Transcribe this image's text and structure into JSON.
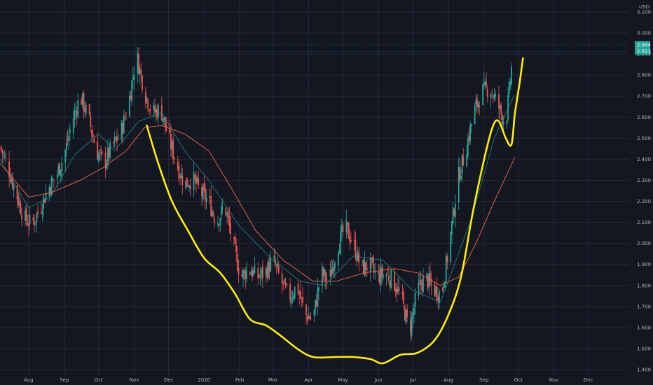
{
  "chart_data": {
    "type": "candlestick",
    "y_unit": "USD",
    "ylim": [
      1.38,
      3.12
    ],
    "y_ticks": [
      "3.100",
      "3.000",
      "2.900",
      "2.800",
      "2.700",
      "2.600",
      "2.500",
      "2.400",
      "2.300",
      "2.200",
      "2.100",
      "2.000",
      "1.900",
      "1.800",
      "1.700",
      "1.600",
      "1.500",
      "1.400"
    ],
    "x_ticks": [
      "Aug",
      "Sep",
      "Oct",
      "Nov",
      "Dec",
      "2020",
      "Feb",
      "Mar",
      "Apr",
      "May",
      "Jun",
      "Jul",
      "Aug",
      "Sep",
      "Oct",
      "Nov",
      "Dec"
    ],
    "x_tick_dates": [
      "2019-08-01",
      "2019-09-01",
      "2019-10-01",
      "2019-11-01",
      "2019-12-01",
      "2020-01-01",
      "2020-02-01",
      "2020-03-01",
      "2020-04-01",
      "2020-05-01",
      "2020-06-01",
      "2020-07-01",
      "2020-08-01",
      "2020-09-01",
      "2020-10-01",
      "2020-11-01",
      "2020-12-01"
    ],
    "xlim": [
      "2019-07-07",
      "2021-01-05"
    ],
    "grid": true,
    "last_price_labels": [
      "2.944",
      "2.913"
    ],
    "colors": {
      "background": "#131722",
      "grid": "#262a36",
      "up": "#26a69a",
      "down": "#ef5350",
      "ma_fast": "#26a69a",
      "ma_slow": "#e06040",
      "annotation": "#ffee00",
      "price_label_bg": "#26a69a"
    },
    "close_path": [
      [
        "2019-07-07",
        2.46
      ],
      [
        "2019-07-14",
        2.36
      ],
      [
        "2019-07-21",
        2.24
      ],
      [
        "2019-07-28",
        2.12
      ],
      [
        "2019-08-04",
        2.09
      ],
      [
        "2019-08-11",
        2.17
      ],
      [
        "2019-08-18",
        2.26
      ],
      [
        "2019-08-25",
        2.32
      ],
      [
        "2019-09-01",
        2.42
      ],
      [
        "2019-09-08",
        2.58
      ],
      [
        "2019-09-15",
        2.7
      ],
      [
        "2019-09-22",
        2.6
      ],
      [
        "2019-09-29",
        2.44
      ],
      [
        "2019-10-06",
        2.38
      ],
      [
        "2019-10-13",
        2.46
      ],
      [
        "2019-10-20",
        2.52
      ],
      [
        "2019-10-27",
        2.66
      ],
      [
        "2019-11-03",
        2.9
      ],
      [
        "2019-11-10",
        2.72
      ],
      [
        "2019-11-17",
        2.62
      ],
      [
        "2019-11-24",
        2.64
      ],
      [
        "2019-12-01",
        2.5
      ],
      [
        "2019-12-08",
        2.38
      ],
      [
        "2019-12-15",
        2.28
      ],
      [
        "2019-12-22",
        2.31
      ],
      [
        "2019-12-29",
        2.24
      ],
      [
        "2020-01-05",
        2.2
      ],
      [
        "2020-01-12",
        2.1
      ],
      [
        "2020-01-19",
        2.18
      ],
      [
        "2020-01-26",
        2.0
      ],
      [
        "2020-02-02",
        1.84
      ],
      [
        "2020-02-09",
        1.88
      ],
      [
        "2020-02-16",
        1.84
      ],
      [
        "2020-02-23",
        1.86
      ],
      [
        "2020-03-01",
        1.92
      ],
      [
        "2020-03-08",
        1.82
      ],
      [
        "2020-03-15",
        1.74
      ],
      [
        "2020-03-22",
        1.8
      ],
      [
        "2020-03-29",
        1.66
      ],
      [
        "2020-04-05",
        1.64
      ],
      [
        "2020-04-12",
        1.86
      ],
      [
        "2020-04-19",
        1.82
      ],
      [
        "2020-04-26",
        1.98
      ],
      [
        "2020-05-03",
        2.08
      ],
      [
        "2020-05-10",
        2.0
      ],
      [
        "2020-05-17",
        1.88
      ],
      [
        "2020-05-24",
        1.9
      ],
      [
        "2020-05-31",
        1.84
      ],
      [
        "2020-06-07",
        1.86
      ],
      [
        "2020-06-14",
        1.82
      ],
      [
        "2020-06-21",
        1.74
      ],
      [
        "2020-06-28",
        1.58
      ],
      [
        "2020-07-05",
        1.78
      ],
      [
        "2020-07-12",
        1.84
      ],
      [
        "2020-07-19",
        1.78
      ],
      [
        "2020-07-26",
        1.76
      ],
      [
        "2020-08-02",
        2.0
      ],
      [
        "2020-08-09",
        2.3
      ],
      [
        "2020-08-16",
        2.44
      ],
      [
        "2020-08-23",
        2.62
      ],
      [
        "2020-08-30",
        2.72
      ],
      [
        "2020-09-06",
        2.74
      ],
      [
        "2020-09-13",
        2.66
      ],
      [
        "2020-09-20",
        2.56
      ],
      [
        "2020-09-27",
        2.94
      ]
    ],
    "ma_fast": [
      [
        "2019-07-07",
        2.4
      ],
      [
        "2019-08-01",
        2.17
      ],
      [
        "2019-08-20",
        2.22
      ],
      [
        "2019-09-10",
        2.42
      ],
      [
        "2019-10-01",
        2.52
      ],
      [
        "2019-10-15",
        2.44
      ],
      [
        "2019-11-05",
        2.58
      ],
      [
        "2019-11-25",
        2.62
      ],
      [
        "2019-12-15",
        2.44
      ],
      [
        "2020-01-05",
        2.3
      ],
      [
        "2020-02-01",
        2.08
      ],
      [
        "2020-03-01",
        1.92
      ],
      [
        "2020-03-25",
        1.82
      ],
      [
        "2020-04-15",
        1.8
      ],
      [
        "2020-05-10",
        1.94
      ],
      [
        "2020-06-05",
        1.92
      ],
      [
        "2020-06-30",
        1.78
      ],
      [
        "2020-07-25",
        1.72
      ],
      [
        "2020-08-20",
        2.1
      ],
      [
        "2020-09-10",
        2.5
      ],
      [
        "2020-09-27",
        2.7
      ]
    ],
    "ma_slow": [
      [
        "2019-07-07",
        2.38
      ],
      [
        "2019-08-01",
        2.22
      ],
      [
        "2019-08-20",
        2.24
      ],
      [
        "2019-09-15",
        2.3
      ],
      [
        "2019-10-05",
        2.36
      ],
      [
        "2019-10-25",
        2.44
      ],
      [
        "2019-11-10",
        2.55
      ],
      [
        "2019-11-25",
        2.56
      ],
      [
        "2019-12-15",
        2.52
      ],
      [
        "2020-01-05",
        2.44
      ],
      [
        "2020-01-25",
        2.26
      ],
      [
        "2020-02-15",
        2.06
      ],
      [
        "2020-03-10",
        1.92
      ],
      [
        "2020-04-05",
        1.82
      ],
      [
        "2020-04-25",
        1.82
      ],
      [
        "2020-05-20",
        1.86
      ],
      [
        "2020-06-15",
        1.88
      ],
      [
        "2020-07-05",
        1.86
      ],
      [
        "2020-07-25",
        1.8
      ],
      [
        "2020-08-10",
        1.84
      ],
      [
        "2020-08-25",
        2.0
      ],
      [
        "2020-09-10",
        2.2
      ],
      [
        "2020-09-28",
        2.41
      ]
    ],
    "annotation_curve": [
      [
        "2019-11-12",
        2.56
      ],
      [
        "2019-11-22",
        2.38
      ],
      [
        "2019-12-04",
        2.2
      ],
      [
        "2019-12-18",
        2.06
      ],
      [
        "2020-01-01",
        1.93
      ],
      [
        "2020-01-15",
        1.86
      ],
      [
        "2020-01-28",
        1.76
      ],
      [
        "2020-02-10",
        1.64
      ],
      [
        "2020-02-24",
        1.61
      ],
      [
        "2020-03-08",
        1.56
      ],
      [
        "2020-03-22",
        1.5
      ],
      [
        "2020-04-05",
        1.46
      ],
      [
        "2020-04-25",
        1.46
      ],
      [
        "2020-05-10",
        1.46
      ],
      [
        "2020-05-25",
        1.45
      ],
      [
        "2020-06-05",
        1.43
      ],
      [
        "2020-06-20",
        1.47
      ],
      [
        "2020-07-05",
        1.48
      ],
      [
        "2020-07-20",
        1.54
      ],
      [
        "2020-08-01",
        1.66
      ],
      [
        "2020-08-12",
        1.84
      ],
      [
        "2020-08-22",
        2.14
      ],
      [
        "2020-09-02",
        2.42
      ],
      [
        "2020-09-09",
        2.56
      ],
      [
        "2020-09-14",
        2.58
      ],
      [
        "2020-09-20",
        2.5
      ],
      [
        "2020-09-25",
        2.47
      ],
      [
        "2020-09-28",
        2.62
      ],
      [
        "2020-10-02",
        2.76
      ],
      [
        "2020-10-05",
        2.88
      ]
    ]
  }
}
